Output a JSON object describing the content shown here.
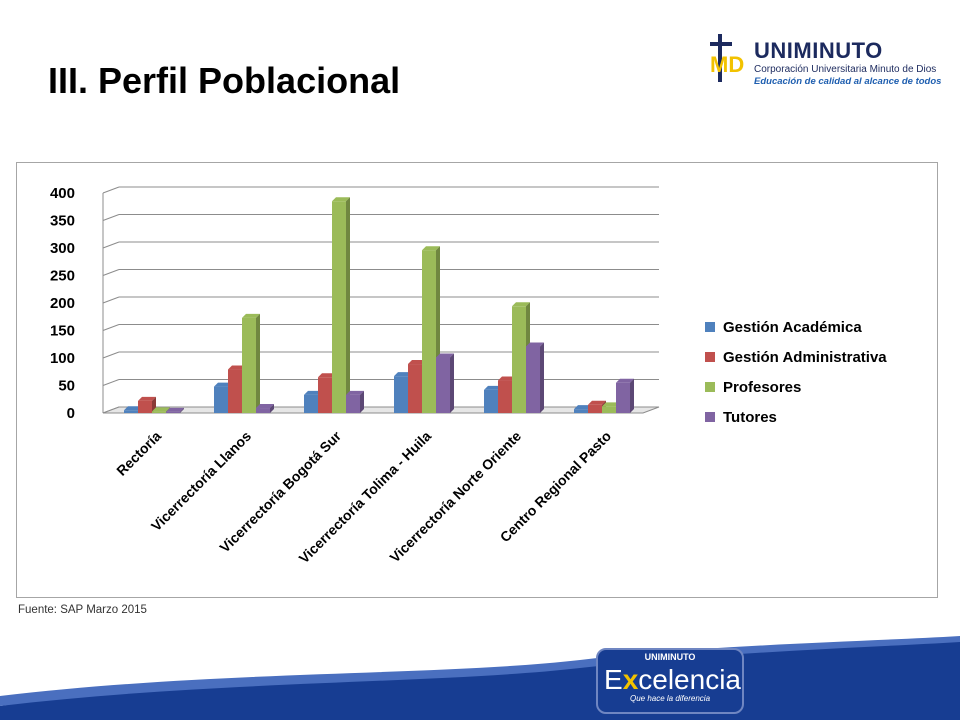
{
  "slide": {
    "title": "III. Perfil Poblacional",
    "source_note": "Fuente: SAP Marzo 2015"
  },
  "logo": {
    "mark": "MD",
    "brand": "UNIMINUTO",
    "subtitle": "Corporación Universitaria Minuto de Dios",
    "tagline": "Educación de calidad al alcance de todos"
  },
  "footer_badge": {
    "top_text": "UNIMINUTO",
    "main_letter": "E",
    "accent_letter": "x",
    "main_rest": "celencia",
    "tagline": "Que hace la diferencia"
  },
  "colors": {
    "footer_blue": "#173d92",
    "title": "#000000"
  },
  "chart_data": {
    "type": "bar",
    "style": "3d-clustered-column",
    "categories": [
      "Rectoría",
      "Vicerrectoría Llanos",
      "Vicerrectoría Bogotá Sur",
      "Vicerrectoría Tolima - Huila",
      "Vicerrectoría Norte Oriente",
      "Centro Regional Pasto"
    ],
    "series": [
      {
        "name": "Gestión Académica",
        "color": "#4f81bd",
        "values": [
          5,
          48,
          33,
          67,
          42,
          7
        ]
      },
      {
        "name": "Gestión Administrativa",
        "color": "#c0504d",
        "values": [
          22,
          79,
          65,
          89,
          59,
          15
        ]
      },
      {
        "name": "Profesores",
        "color": "#9bbb59",
        "values": [
          3,
          173,
          385,
          296,
          194,
          12
        ]
      },
      {
        "name": "Tutores",
        "color": "#8064a2",
        "values": [
          2,
          9,
          33,
          101,
          121,
          55
        ]
      }
    ],
    "ylim": [
      0,
      400
    ],
    "yticks": [
      0,
      50,
      100,
      150,
      200,
      250,
      300,
      350,
      400
    ],
    "grid": true,
    "legend": "right"
  }
}
